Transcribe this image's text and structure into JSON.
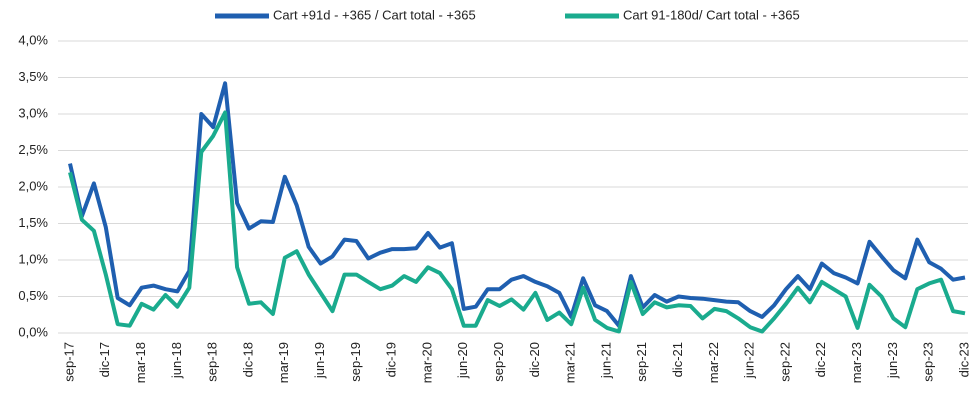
{
  "chart_data": {
    "type": "line",
    "categories": [
      "sep-17",
      null,
      null,
      "dic-17",
      null,
      null,
      "mar-18",
      null,
      null,
      "jun-18",
      null,
      null,
      "sep-18",
      null,
      null,
      "dic-18",
      null,
      null,
      "mar-19",
      null,
      null,
      "jun-19",
      null,
      null,
      "sep-19",
      null,
      null,
      "dic-19",
      null,
      null,
      "mar-20",
      null,
      null,
      "jun-20",
      null,
      null,
      "sep-20",
      null,
      null,
      "dic-20",
      null,
      null,
      "mar-21",
      null,
      null,
      "jun-21",
      null,
      null,
      "sep-21",
      null,
      null,
      "dic-21",
      null,
      null,
      "mar-22",
      null,
      null,
      "jun-22",
      null,
      null,
      "sep-22",
      null,
      null,
      "dic-22",
      null,
      null,
      "mar-23",
      null,
      null,
      "jun-23",
      null,
      null,
      "sep-23",
      null,
      null,
      "dic-23"
    ],
    "series": [
      {
        "name": "Cart +91d - +365 / Cart total - +365",
        "color": "#1f5fb0",
        "values": [
          2.32,
          1.6,
          2.05,
          1.45,
          0.48,
          0.38,
          0.62,
          0.65,
          0.6,
          0.57,
          0.85,
          3.0,
          2.82,
          3.42,
          1.78,
          1.43,
          1.53,
          1.52,
          2.14,
          1.75,
          1.18,
          0.95,
          1.05,
          1.28,
          1.26,
          1.02,
          1.1,
          1.15,
          1.15,
          1.16,
          1.37,
          1.17,
          1.23,
          0.33,
          0.36,
          0.6,
          0.6,
          0.73,
          0.78,
          0.7,
          0.64,
          0.55,
          0.22,
          0.75,
          0.38,
          0.3,
          0.1,
          0.78,
          0.35,
          0.52,
          0.43,
          0.5,
          0.48,
          0.47,
          0.45,
          0.43,
          0.42,
          0.3,
          0.22,
          0.38,
          0.6,
          0.78,
          0.6,
          0.95,
          0.82,
          0.76,
          0.68,
          1.25,
          1.05,
          0.86,
          0.75,
          1.28,
          0.97,
          0.88,
          0.73,
          0.76
        ]
      },
      {
        "name": "Cart 91-180d/ Cart total - +365",
        "color": "#1aab8e",
        "values": [
          2.2,
          1.55,
          1.4,
          0.8,
          0.12,
          0.1,
          0.4,
          0.32,
          0.52,
          0.36,
          0.62,
          2.48,
          2.7,
          3.02,
          0.9,
          0.4,
          0.42,
          0.26,
          1.03,
          1.12,
          0.8,
          0.55,
          0.3,
          0.8,
          0.8,
          0.7,
          0.6,
          0.65,
          0.78,
          0.7,
          0.9,
          0.82,
          0.6,
          0.1,
          0.1,
          0.45,
          0.37,
          0.46,
          0.32,
          0.55,
          0.18,
          0.28,
          0.12,
          0.62,
          0.18,
          0.07,
          0.02,
          0.7,
          0.26,
          0.42,
          0.35,
          0.38,
          0.37,
          0.2,
          0.33,
          0.3,
          0.2,
          0.08,
          0.02,
          0.2,
          0.4,
          0.62,
          0.42,
          0.7,
          0.6,
          0.5,
          0.07,
          0.66,
          0.5,
          0.2,
          0.08,
          0.6,
          0.68,
          0.73,
          0.3,
          0.27
        ]
      }
    ],
    "ylim": [
      0,
      4.0
    ],
    "yticks": [
      {
        "value": 0,
        "label": "0,0%"
      },
      {
        "value": 0.5,
        "label": "0,5%"
      },
      {
        "value": 1.0,
        "label": "1,0%"
      },
      {
        "value": 1.5,
        "label": "1,5%"
      },
      {
        "value": 2.0,
        "label": "2,0%"
      },
      {
        "value": 2.5,
        "label": "2,5%"
      },
      {
        "value": 3.0,
        "label": "3,0%"
      },
      {
        "value": 3.5,
        "label": "3,5%"
      },
      {
        "value": 4.0,
        "label": "4,0%"
      }
    ],
    "grid": true,
    "legend": "top"
  }
}
